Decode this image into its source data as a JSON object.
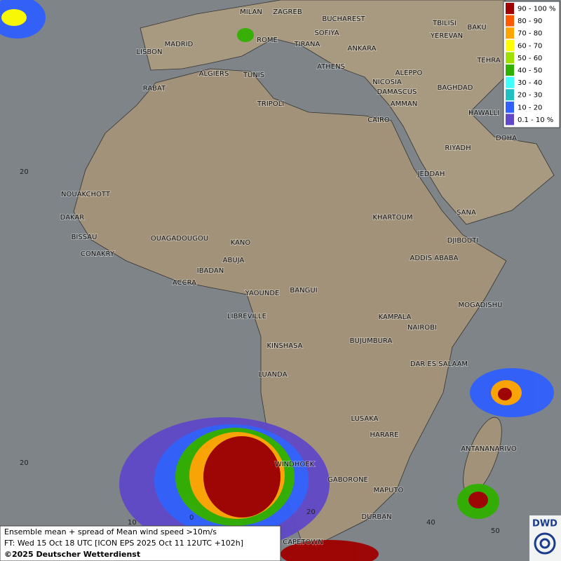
{
  "legend": {
    "items": [
      {
        "label": "90 - 100 %",
        "color": "#a00000"
      },
      {
        "label": "80 - 90",
        "color": "#ff5a00"
      },
      {
        "label": "70 - 80",
        "color": "#ffa500"
      },
      {
        "label": "60 - 70",
        "color": "#ffff00"
      },
      {
        "label": "50 - 60",
        "color": "#a0e000"
      },
      {
        "label": "40 - 50",
        "color": "#30b000"
      },
      {
        "label": "30 - 40",
        "color": "#40ffff"
      },
      {
        "label": "20 - 30",
        "color": "#20c0c0"
      },
      {
        "label": "10 - 20",
        "color": "#3060ff"
      },
      {
        "label": "0.1 - 10 %",
        "color": "#6048c8"
      }
    ]
  },
  "cities": [
    "MILAN",
    "ZAGREB",
    "BUCHAREST",
    "BAKU",
    "TBILISI",
    "YEREVAN",
    "SOFIYA",
    "MADRID",
    "ROME",
    "TIRANA",
    "ANKARA",
    "TEHRA",
    "LISBON",
    "ALGIERS",
    "TUNIS",
    "ATHENS",
    "ALEPPO",
    "RABAT",
    "NICOSIA",
    "BAGHDAD",
    "DAMASCUS",
    "TRIPOLI",
    "AMMAN",
    "HAWALLI",
    "CAIRO",
    "DOHA",
    "RIYADH",
    "JEDDAH",
    "NOUAKCHOTT",
    "DAKAR",
    "KHARTOUM",
    "SANA",
    "BISSAU",
    "OUAGADOUGOU",
    "KANO",
    "DJIBOUTI",
    "CONAKRY",
    "ABUJA",
    "ADDIS ABABA",
    "IBADAN",
    "ACCRA",
    "YAOUNDE",
    "BANGUI",
    "MOGADISHU",
    "LIBREVILLE",
    "KAMPALA",
    "NAIROBI",
    "BUJUMBURA",
    "KINSHASA",
    "DAR ES SALAAM",
    "LUANDA",
    "LUSAKA",
    "HARARE",
    "ANTANANARIVO",
    "WINDHOEK",
    "GABORONE",
    "MAPUTO",
    "DURBAN",
    "CAPETOWN"
  ],
  "grid_labels": [
    "20",
    "20",
    "10",
    "0",
    "20",
    "40",
    "50"
  ],
  "caption": {
    "line1": "Ensemble mean + spread of Mean wind speed >10m/s",
    "line2": "FT: Wed 15 Oct 18 UTC [ICON EPS 2025 Oct 11 12UTC +102h]",
    "line3": "©2025 Deutscher Wetterdienst"
  },
  "logo": "DWD"
}
